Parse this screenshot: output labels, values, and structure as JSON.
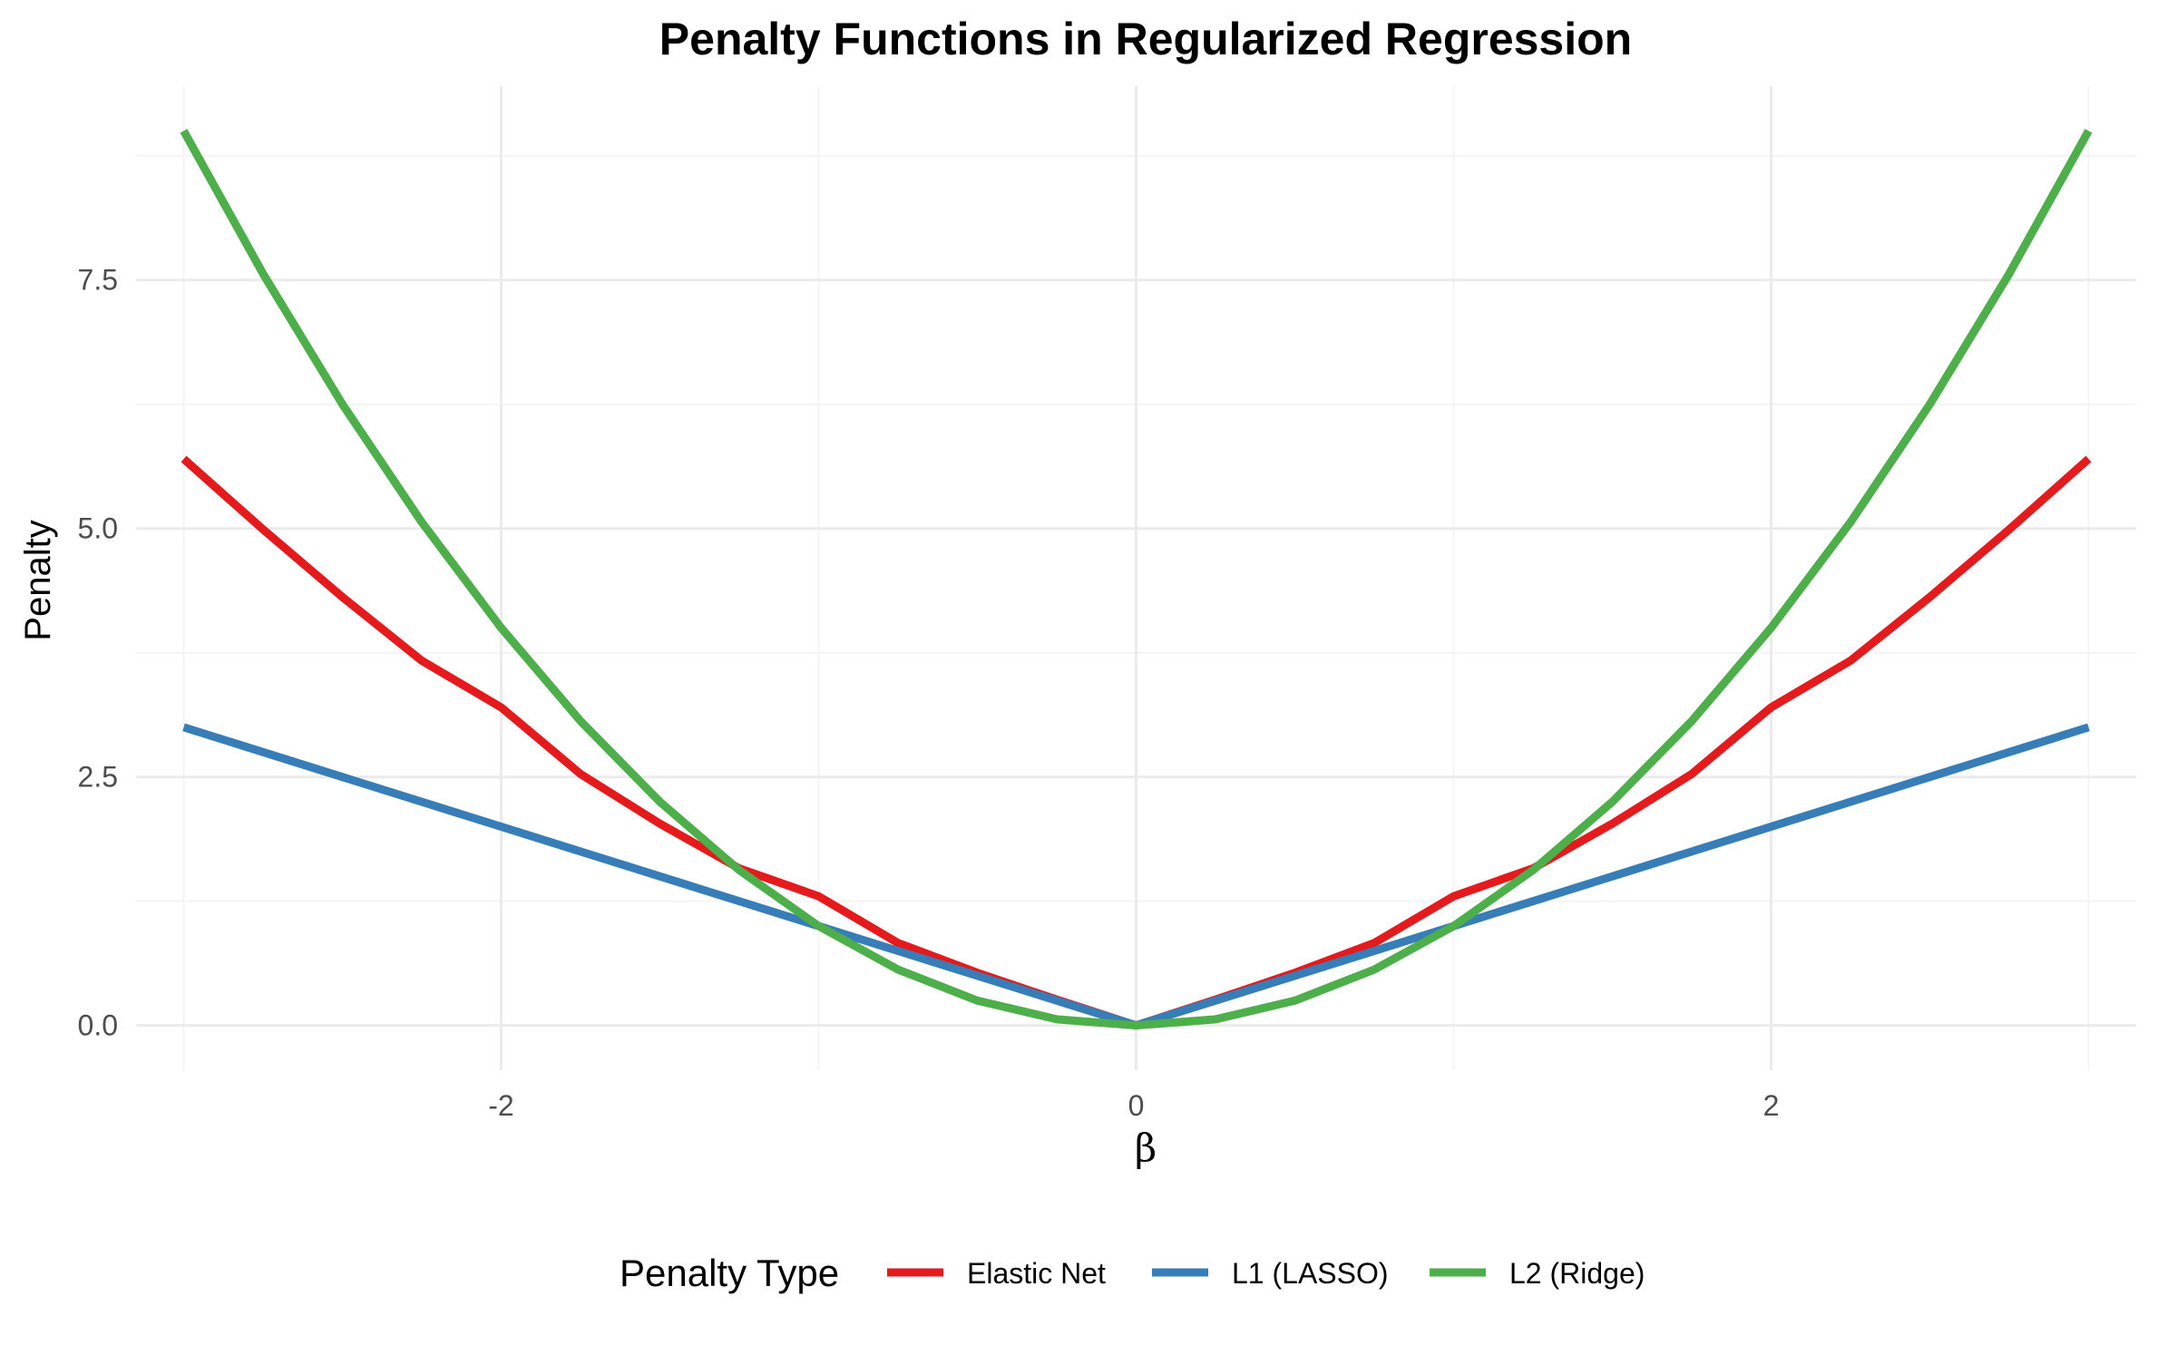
{
  "chart_data": {
    "type": "line",
    "title": "Penalty Functions in Regularized Regression",
    "xlabel": "β",
    "ylabel": "Penalty",
    "xlim": [
      -3.15,
      3.15
    ],
    "ylim": [
      -0.45,
      9.45
    ],
    "x_ticks": [
      {
        "value": -2,
        "label": "-2"
      },
      {
        "value": 0,
        "label": "0"
      },
      {
        "value": 2,
        "label": "2"
      }
    ],
    "y_ticks": [
      {
        "value": 0,
        "label": "0.0"
      },
      {
        "value": 2.5,
        "label": "2.5"
      },
      {
        "value": 5,
        "label": "5.0"
      },
      {
        "value": 7.5,
        "label": "7.5"
      }
    ],
    "x_minor": [
      -3,
      -1,
      1,
      3
    ],
    "y_minor": [
      1.25,
      3.75,
      6.25,
      8.75
    ],
    "grid": true,
    "legend": {
      "title": "Penalty Type",
      "position": "bottom"
    },
    "series": [
      {
        "name": "Elastic Net",
        "color": "#e41a1c",
        "x": [
          -3,
          -2.75,
          -2.5,
          -2.25,
          -2,
          -1.75,
          -1.5,
          -1.25,
          -1,
          -0.75,
          -0.5,
          -0.25,
          0,
          0.25,
          0.5,
          0.75,
          1,
          1.25,
          1.5,
          1.75,
          2,
          2.25,
          2.5,
          2.75,
          3
        ],
        "y": [
          5.7,
          4.99,
          4.31,
          3.67,
          3.2,
          2.53,
          2.03,
          1.58,
          1.3,
          0.83,
          0.53,
          0.26,
          0,
          0.26,
          0.53,
          0.83,
          1.3,
          1.58,
          2.03,
          2.53,
          3.2,
          3.67,
          4.31,
          4.99,
          5.7
        ]
      },
      {
        "name": "L1 (LASSO)",
        "color": "#377eb8",
        "x": [
          -3,
          0,
          3
        ],
        "y": [
          3,
          0,
          3
        ]
      },
      {
        "name": "L2 (Ridge)",
        "color": "#4daf4a",
        "x": [
          -3,
          -2.75,
          -2.5,
          -2.25,
          -2,
          -1.75,
          -1.5,
          -1.25,
          -1,
          -0.75,
          -0.5,
          -0.25,
          0,
          0.25,
          0.5,
          0.75,
          1,
          1.25,
          1.5,
          1.75,
          2,
          2.25,
          2.5,
          2.75,
          3
        ],
        "y": [
          9,
          7.5625,
          6.25,
          5.0625,
          4,
          3.0625,
          2.25,
          1.5625,
          1,
          0.5625,
          0.25,
          0.0625,
          0,
          0.0625,
          0.25,
          0.5625,
          1,
          1.5625,
          2.25,
          3.0625,
          4,
          5.0625,
          6.25,
          7.5625,
          9
        ]
      }
    ]
  }
}
